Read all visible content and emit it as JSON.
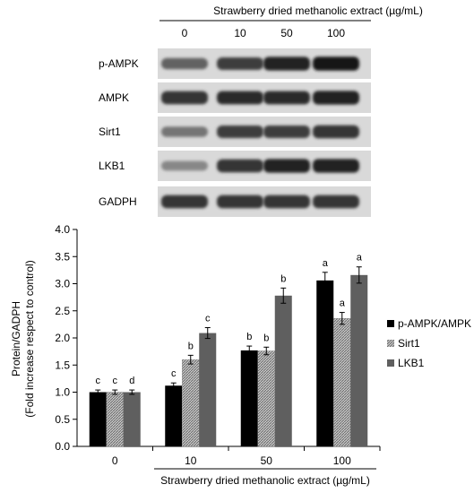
{
  "blot": {
    "header": "Strawberry dried methanolic extract (µg/mL)",
    "doses": [
      "0",
      "10",
      "50",
      "100"
    ],
    "proteins": [
      "p-AMPK",
      "AMPK",
      "Sirt1",
      "LKB1",
      "GADPH"
    ],
    "band_intensity": [
      [
        0.55,
        0.75,
        0.9,
        0.95
      ],
      [
        0.8,
        0.85,
        0.85,
        0.9
      ],
      [
        0.45,
        0.75,
        0.75,
        0.8
      ],
      [
        0.35,
        0.8,
        0.9,
        0.9
      ],
      [
        0.8,
        0.8,
        0.8,
        0.8
      ]
    ]
  },
  "chart_data": {
    "type": "bar",
    "categories": [
      "0",
      "10",
      "50",
      "100"
    ],
    "xlabel": "Strawberry dried methanolic extract (µg/mL)",
    "ylabel": [
      "Protein/GADPH",
      "(Fold increase respect to control)"
    ],
    "ylim": [
      0,
      4.0
    ],
    "yticks": [
      "0.0",
      "0.5",
      "1.0",
      "1.5",
      "2.0",
      "2.5",
      "3.0",
      "3.5",
      "4.0"
    ],
    "grid": false,
    "legend_position": "right",
    "series": [
      {
        "name": "p-AMPK/AMPK",
        "values": [
          1.0,
          1.12,
          1.77,
          3.06
        ],
        "errors": [
          0.04,
          0.05,
          0.08,
          0.15
        ],
        "letters": [
          "c",
          "c",
          "b",
          "a"
        ],
        "color": "#000000",
        "pattern": "solid"
      },
      {
        "name": "Sirt1",
        "values": [
          1.0,
          1.6,
          1.76,
          2.36
        ],
        "errors": [
          0.04,
          0.08,
          0.07,
          0.11
        ],
        "letters": [
          "c",
          "b",
          "b",
          "a"
        ],
        "color": "#9a9a9a",
        "pattern": "hatched"
      },
      {
        "name": "LKB1",
        "values": [
          1.0,
          2.09,
          2.78,
          3.16
        ],
        "errors": [
          0.04,
          0.1,
          0.14,
          0.15
        ],
        "letters": [
          "d",
          "c",
          "b",
          "a"
        ],
        "color": "#5f5f5f",
        "pattern": "solid"
      }
    ]
  }
}
